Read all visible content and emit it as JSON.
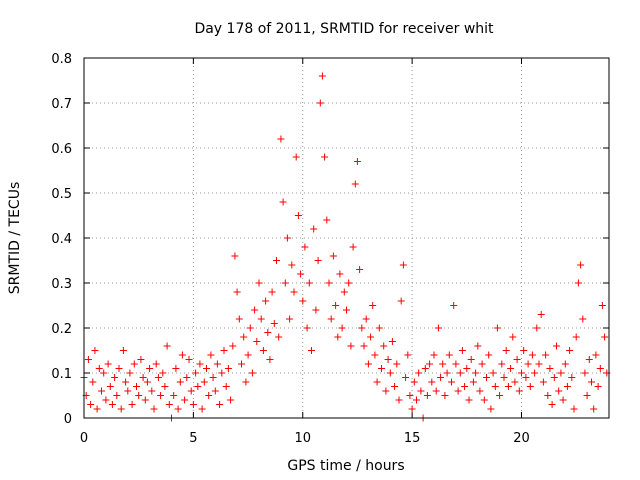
{
  "chart_data": {
    "type": "scatter",
    "title": "Day 178 of 2011, SRMTID for receiver whit",
    "xlabel": "GPS time / hours",
    "ylabel": "SRMTID / TECUs",
    "xlim": [
      0,
      24
    ],
    "ylim": [
      0,
      0.8
    ],
    "xticks": [
      0,
      5,
      10,
      15,
      20
    ],
    "xtick_labels": [
      "0",
      "5",
      "10",
      "15",
      "20"
    ],
    "yticks": [
      0,
      0.1,
      0.2,
      0.3,
      0.4,
      0.5,
      0.6,
      0.7,
      0.8
    ],
    "ytick_labels": [
      "0",
      "0.1",
      "0.2",
      "0.3",
      "0.4",
      "0.5",
      "0.6",
      "0.7",
      "0.8"
    ],
    "grid": true,
    "marker": "+",
    "color": "#ff0000",
    "series": [
      {
        "name": "SRMTID",
        "points": [
          [
            0.0,
            0.09
          ],
          [
            0.1,
            0.05
          ],
          [
            0.2,
            0.13
          ],
          [
            0.3,
            0.03
          ],
          [
            0.4,
            0.08
          ],
          [
            0.5,
            0.15
          ],
          [
            0.6,
            0.02
          ],
          [
            0.7,
            0.11
          ],
          [
            0.8,
            0.06
          ],
          [
            0.9,
            0.1
          ],
          [
            1.0,
            0.04
          ],
          [
            1.1,
            0.12
          ],
          [
            1.2,
            0.07
          ],
          [
            1.3,
            0.03
          ],
          [
            1.4,
            0.09
          ],
          [
            1.5,
            0.05
          ],
          [
            1.6,
            0.11
          ],
          [
            1.7,
            0.02
          ],
          [
            1.8,
            0.15
          ],
          [
            1.9,
            0.08
          ],
          [
            2.0,
            0.06
          ],
          [
            2.1,
            0.1
          ],
          [
            2.2,
            0.03
          ],
          [
            2.3,
            0.12
          ],
          [
            2.4,
            0.07
          ],
          [
            2.5,
            0.05
          ],
          [
            2.6,
            0.13
          ],
          [
            2.7,
            0.09
          ],
          [
            2.8,
            0.04
          ],
          [
            2.9,
            0.08
          ],
          [
            3.0,
            0.11
          ],
          [
            3.1,
            0.06
          ],
          [
            3.2,
            0.02
          ],
          [
            3.3,
            0.12
          ],
          [
            3.4,
            0.09
          ],
          [
            3.5,
            0.05
          ],
          [
            3.6,
            0.1
          ],
          [
            3.7,
            0.07
          ],
          [
            3.8,
            0.16
          ],
          [
            3.9,
            0.03
          ],
          [
            4.0,
            0.0
          ],
          [
            4.1,
            0.05
          ],
          [
            4.2,
            0.11
          ],
          [
            4.3,
            0.02
          ],
          [
            4.4,
            0.08
          ],
          [
            4.5,
            0.14
          ],
          [
            4.6,
            0.04
          ],
          [
            4.7,
            0.09
          ],
          [
            4.8,
            0.13
          ],
          [
            4.9,
            0.06
          ],
          [
            5.0,
            0.03
          ],
          [
            5.1,
            0.1
          ],
          [
            5.2,
            0.07
          ],
          [
            5.3,
            0.12
          ],
          [
            5.4,
            0.02
          ],
          [
            5.5,
            0.08
          ],
          [
            5.6,
            0.11
          ],
          [
            5.7,
            0.05
          ],
          [
            5.8,
            0.14
          ],
          [
            5.9,
            0.09
          ],
          [
            6.0,
            0.06
          ],
          [
            6.1,
            0.12
          ],
          [
            6.2,
            0.03
          ],
          [
            6.3,
            0.1
          ],
          [
            6.4,
            0.15
          ],
          [
            6.5,
            0.07
          ],
          [
            6.6,
            0.11
          ],
          [
            6.7,
            0.04
          ],
          [
            6.8,
            0.16
          ],
          [
            6.9,
            0.36
          ],
          [
            7.0,
            0.28
          ],
          [
            7.1,
            0.22
          ],
          [
            7.2,
            0.12
          ],
          [
            7.3,
            0.18
          ],
          [
            7.4,
            0.08
          ],
          [
            7.5,
            0.14
          ],
          [
            7.6,
            0.2
          ],
          [
            7.7,
            0.1
          ],
          [
            7.8,
            0.24
          ],
          [
            7.9,
            0.17
          ],
          [
            8.0,
            0.3
          ],
          [
            8.1,
            0.22
          ],
          [
            8.2,
            0.15
          ],
          [
            8.3,
            0.26
          ],
          [
            8.4,
            0.19
          ],
          [
            8.5,
            0.13
          ],
          [
            8.6,
            0.28
          ],
          [
            8.7,
            0.21
          ],
          [
            8.8,
            0.35
          ],
          [
            8.9,
            0.18
          ],
          [
            9.0,
            0.62
          ],
          [
            9.1,
            0.48
          ],
          [
            9.2,
            0.3
          ],
          [
            9.3,
            0.4
          ],
          [
            9.4,
            0.22
          ],
          [
            9.5,
            0.34
          ],
          [
            9.6,
            0.28
          ],
          [
            9.7,
            0.58
          ],
          [
            9.8,
            0.45
          ],
          [
            9.9,
            0.32
          ],
          [
            10.0,
            0.26
          ],
          [
            10.1,
            0.38
          ],
          [
            10.2,
            0.2
          ],
          [
            10.3,
            0.3
          ],
          [
            10.4,
            0.15
          ],
          [
            10.5,
            0.42
          ],
          [
            10.6,
            0.24
          ],
          [
            10.7,
            0.35
          ],
          [
            10.8,
            0.7
          ],
          [
            10.9,
            0.76
          ],
          [
            11.0,
            0.58
          ],
          [
            11.1,
            0.44
          ],
          [
            11.2,
            0.3
          ],
          [
            11.3,
            0.22
          ],
          [
            11.4,
            0.36
          ],
          [
            11.5,
            0.25
          ],
          [
            11.6,
            0.18
          ],
          [
            11.7,
            0.32
          ],
          [
            11.8,
            0.2
          ],
          [
            11.9,
            0.28
          ],
          [
            12.0,
            0.24
          ],
          [
            12.1,
            0.3
          ],
          [
            12.2,
            0.16
          ],
          [
            12.3,
            0.38
          ],
          [
            12.4,
            0.52
          ],
          [
            12.5,
            0.57
          ],
          [
            12.6,
            0.33
          ],
          [
            12.7,
            0.2
          ],
          [
            12.8,
            0.16
          ],
          [
            12.9,
            0.22
          ],
          [
            13.0,
            0.12
          ],
          [
            13.1,
            0.18
          ],
          [
            13.2,
            0.25
          ],
          [
            13.3,
            0.14
          ],
          [
            13.4,
            0.08
          ],
          [
            13.5,
            0.2
          ],
          [
            13.6,
            0.11
          ],
          [
            13.7,
            0.16
          ],
          [
            13.8,
            0.06
          ],
          [
            13.9,
            0.13
          ],
          [
            14.0,
            0.1
          ],
          [
            14.1,
            0.17
          ],
          [
            14.2,
            0.07
          ],
          [
            14.3,
            0.12
          ],
          [
            14.4,
            0.04
          ],
          [
            14.5,
            0.26
          ],
          [
            14.6,
            0.34
          ],
          [
            14.7,
            0.09
          ],
          [
            14.8,
            0.14
          ],
          [
            14.9,
            0.05
          ],
          [
            15.0,
            0.02
          ],
          [
            15.1,
            0.08
          ],
          [
            15.2,
            0.04
          ],
          [
            15.3,
            0.1
          ],
          [
            15.4,
            0.06
          ],
          [
            15.5,
            0.0
          ],
          [
            15.6,
            0.11
          ],
          [
            15.7,
            0.05
          ],
          [
            15.8,
            0.12
          ],
          [
            15.9,
            0.08
          ],
          [
            16.0,
            0.14
          ],
          [
            16.1,
            0.06
          ],
          [
            16.2,
            0.2
          ],
          [
            16.3,
            0.09
          ],
          [
            16.4,
            0.12
          ],
          [
            16.5,
            0.05
          ],
          [
            16.6,
            0.1
          ],
          [
            16.7,
            0.14
          ],
          [
            16.8,
            0.08
          ],
          [
            16.9,
            0.25
          ],
          [
            17.0,
            0.12
          ],
          [
            17.1,
            0.06
          ],
          [
            17.2,
            0.1
          ],
          [
            17.3,
            0.15
          ],
          [
            17.4,
            0.07
          ],
          [
            17.5,
            0.11
          ],
          [
            17.6,
            0.04
          ],
          [
            17.7,
            0.13
          ],
          [
            17.8,
            0.08
          ],
          [
            17.9,
            0.1
          ],
          [
            18.0,
            0.16
          ],
          [
            18.1,
            0.06
          ],
          [
            18.2,
            0.12
          ],
          [
            18.3,
            0.04
          ],
          [
            18.4,
            0.09
          ],
          [
            18.5,
            0.14
          ],
          [
            18.6,
            0.02
          ],
          [
            18.7,
            0.1
          ],
          [
            18.8,
            0.07
          ],
          [
            18.9,
            0.2
          ],
          [
            19.0,
            0.05
          ],
          [
            19.1,
            0.12
          ],
          [
            19.2,
            0.09
          ],
          [
            19.3,
            0.15
          ],
          [
            19.4,
            0.07
          ],
          [
            19.5,
            0.11
          ],
          [
            19.6,
            0.18
          ],
          [
            19.7,
            0.08
          ],
          [
            19.8,
            0.13
          ],
          [
            19.9,
            0.06
          ],
          [
            20.0,
            0.1
          ],
          [
            20.1,
            0.15
          ],
          [
            20.2,
            0.09
          ],
          [
            20.3,
            0.12
          ],
          [
            20.4,
            0.07
          ],
          [
            20.5,
            0.14
          ],
          [
            20.6,
            0.1
          ],
          [
            20.7,
            0.2
          ],
          [
            20.8,
            0.12
          ],
          [
            20.9,
            0.23
          ],
          [
            21.0,
            0.08
          ],
          [
            21.1,
            0.14
          ],
          [
            21.2,
            0.05
          ],
          [
            21.3,
            0.11
          ],
          [
            21.4,
            0.03
          ],
          [
            21.5,
            0.09
          ],
          [
            21.6,
            0.16
          ],
          [
            21.7,
            0.06
          ],
          [
            21.8,
            0.1
          ],
          [
            21.9,
            0.04
          ],
          [
            22.0,
            0.12
          ],
          [
            22.1,
            0.07
          ],
          [
            22.2,
            0.15
          ],
          [
            22.3,
            0.09
          ],
          [
            22.4,
            0.02
          ],
          [
            22.5,
            0.18
          ],
          [
            22.6,
            0.3
          ],
          [
            22.7,
            0.34
          ],
          [
            22.8,
            0.22
          ],
          [
            22.9,
            0.1
          ],
          [
            23.0,
            0.05
          ],
          [
            23.1,
            0.13
          ],
          [
            23.2,
            0.08
          ],
          [
            23.3,
            0.02
          ],
          [
            23.4,
            0.14
          ],
          [
            23.5,
            0.07
          ],
          [
            23.6,
            0.11
          ],
          [
            23.7,
            0.25
          ],
          [
            23.8,
            0.18
          ],
          [
            23.9,
            0.1
          ]
        ]
      }
    ]
  }
}
